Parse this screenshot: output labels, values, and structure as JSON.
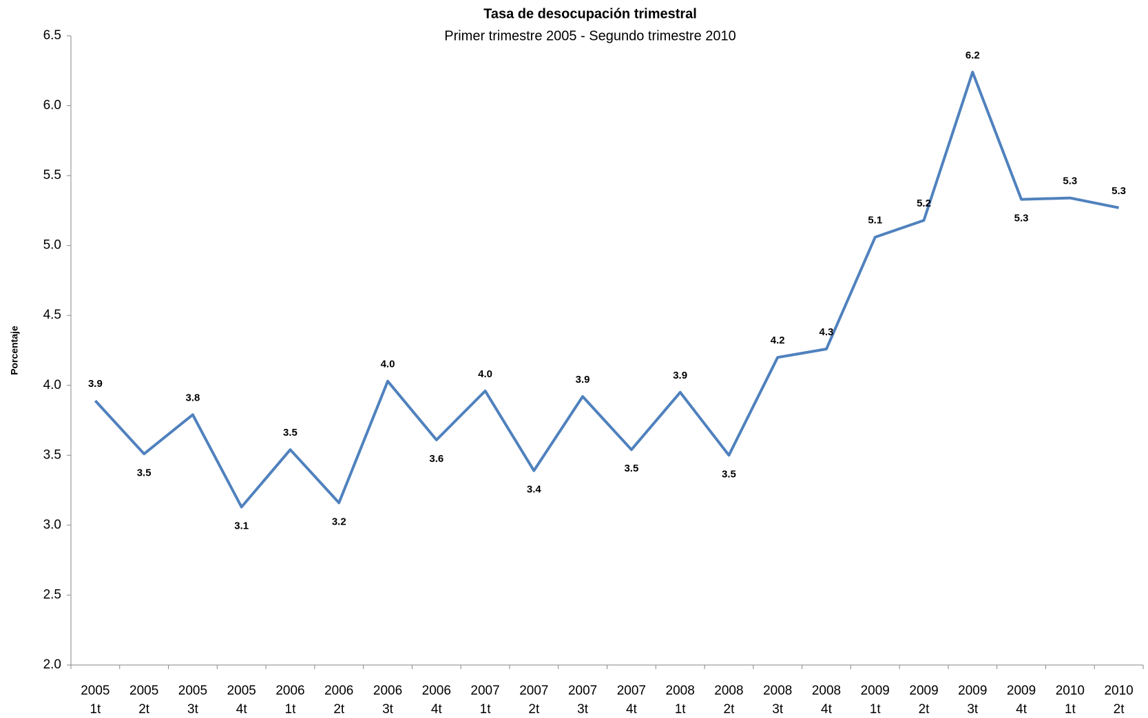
{
  "chart_data": {
    "type": "line",
    "title": "Tasa de desocupación trimestral",
    "subtitle": "Primer trimestre 2005 - Segundo trimestre 2010",
    "y_label": "Porcentaje",
    "categories": [
      [
        "2005",
        "1t"
      ],
      [
        "2005",
        "2t"
      ],
      [
        "2005",
        "3t"
      ],
      [
        "2005",
        "4t"
      ],
      [
        "2006",
        "1t"
      ],
      [
        "2006",
        "2t"
      ],
      [
        "2006",
        "3t"
      ],
      [
        "2006",
        "4t"
      ],
      [
        "2007",
        "1t"
      ],
      [
        "2007",
        "2t"
      ],
      [
        "2007",
        "3t"
      ],
      [
        "2007",
        "4t"
      ],
      [
        "2008",
        "1t"
      ],
      [
        "2008",
        "2t"
      ],
      [
        "2008",
        "3t"
      ],
      [
        "2008",
        "4t"
      ],
      [
        "2009",
        "1t"
      ],
      [
        "2009",
        "2t"
      ],
      [
        "2009",
        "3t"
      ],
      [
        "2009",
        "4t"
      ],
      [
        "2010",
        "1t"
      ],
      [
        "2010",
        "2t"
      ]
    ],
    "series": [
      {
        "color": "#4f81bd",
        "values": [
          3.89,
          3.51,
          3.79,
          3.13,
          3.54,
          3.16,
          4.03,
          3.61,
          3.96,
          3.39,
          3.92,
          3.54,
          3.95,
          3.5,
          4.2,
          4.26,
          5.06,
          5.18,
          6.24,
          5.33,
          5.34,
          5.27
        ],
        "value_labels": [
          "3.9",
          "3.5",
          "3.8",
          "3.1",
          "3.5",
          "3.2",
          "4.0",
          "3.6",
          "4.0",
          "3.4",
          "3.9",
          "3.5",
          "3.9",
          "3.5",
          "4.2",
          "4.3",
          "5.1",
          "5.2",
          "6.2",
          "5.3",
          "5.3",
          "5.3"
        ]
      }
    ],
    "ylim": [
      2,
      6.5
    ],
    "yticks": [
      {
        "value": 2,
        "label": "2.0"
      },
      2.5,
      {
        "value": 3,
        "label": "3.0"
      },
      3.5,
      {
        "value": 4,
        "label": "4.0"
      },
      4.5,
      {
        "value": 5,
        "label": "5.0"
      },
      5.5,
      {
        "value": 6,
        "label": "6.0"
      },
      6.5
    ],
    "grid": false
  }
}
